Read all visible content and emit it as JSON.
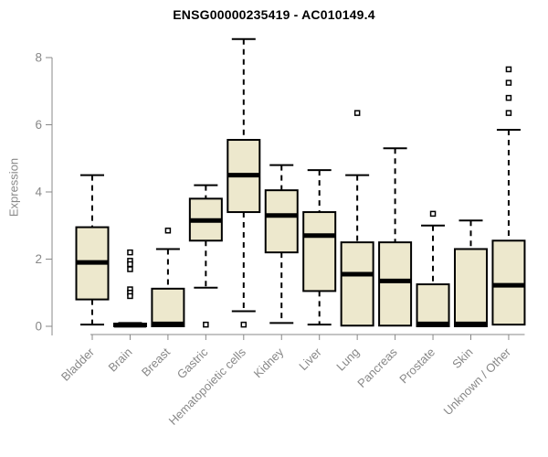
{
  "chart_data": {
    "type": "boxplot",
    "title": "ENSG00000235419 - AC010149.4",
    "ylabel": "Expression",
    "xlabel": "",
    "ylim": [
      0,
      8.6
    ],
    "yticks": [
      0,
      2,
      4,
      6,
      8
    ],
    "grid": false,
    "legend": null,
    "categories": [
      "Bladder",
      "Brain",
      "Breast",
      "Gastric",
      "Hematopoietic cells",
      "Kidney",
      "Liver",
      "Lung",
      "Pancreas",
      "Prostate",
      "Skin",
      "Unknown / Other"
    ],
    "series": [
      {
        "label": "Bladder",
        "whisker_low": 0.05,
        "q1": 0.8,
        "median": 1.9,
        "q3": 2.95,
        "whisker_high": 4.5,
        "outliers": []
      },
      {
        "label": "Brain",
        "whisker_low": 0.0,
        "q1": 0.0,
        "median": 0.03,
        "q3": 0.08,
        "whisker_high": 0.1,
        "outliers": [
          2.2,
          1.95,
          1.85,
          1.7,
          1.1,
          1.0,
          0.9
        ]
      },
      {
        "label": "Breast",
        "whisker_low": 0.0,
        "q1": 0.0,
        "median": 0.07,
        "q3": 1.12,
        "whisker_high": 2.3,
        "outliers": [
          2.85
        ]
      },
      {
        "label": "Gastric",
        "whisker_low": 1.15,
        "q1": 2.55,
        "median": 3.15,
        "q3": 3.8,
        "whisker_high": 4.2,
        "outliers": [
          0.05
        ]
      },
      {
        "label": "Hematopoietic cells",
        "whisker_low": 0.45,
        "q1": 3.4,
        "median": 4.5,
        "q3": 5.55,
        "whisker_high": 8.55,
        "outliers": [
          0.05
        ]
      },
      {
        "label": "Kidney",
        "whisker_low": 0.1,
        "q1": 2.2,
        "median": 3.3,
        "q3": 4.05,
        "whisker_high": 4.8,
        "outliers": []
      },
      {
        "label": "Liver",
        "whisker_low": 0.05,
        "q1": 1.05,
        "median": 2.7,
        "q3": 3.4,
        "whisker_high": 4.65,
        "outliers": []
      },
      {
        "label": "Lung",
        "whisker_low": 0.02,
        "q1": 0.02,
        "median": 1.55,
        "q3": 2.5,
        "whisker_high": 4.5,
        "outliers": [
          6.35
        ]
      },
      {
        "label": "Pancreas",
        "whisker_low": 0.02,
        "q1": 0.02,
        "median": 1.35,
        "q3": 2.5,
        "whisker_high": 5.3,
        "outliers": []
      },
      {
        "label": "Prostate",
        "whisker_low": 0.0,
        "q1": 0.0,
        "median": 0.07,
        "q3": 1.25,
        "whisker_high": 3.0,
        "outliers": [
          3.35
        ]
      },
      {
        "label": "Skin",
        "whisker_low": 0.0,
        "q1": 0.0,
        "median": 0.07,
        "q3": 2.3,
        "whisker_high": 3.15,
        "outliers": []
      },
      {
        "label": "Unknown / Other",
        "whisker_low": 0.05,
        "q1": 0.05,
        "median": 1.22,
        "q3": 2.55,
        "whisker_high": 5.85,
        "outliers": [
          7.65,
          7.25,
          6.8,
          6.35
        ]
      }
    ],
    "colors": {
      "box_fill": "#EDE8CD",
      "box_border": "#000000",
      "median": "#000000",
      "whisker": "#000000",
      "outlier_fill": "#FFFFFF",
      "axis": "#888888",
      "tick_label": "#888888",
      "title": "#000000",
      "background": "#FFFFFF"
    }
  }
}
